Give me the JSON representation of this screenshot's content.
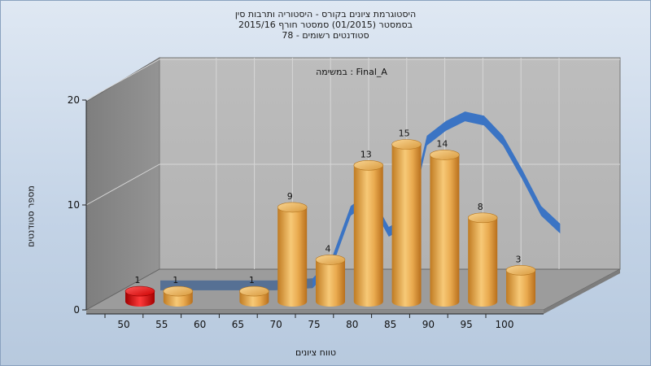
{
  "chart_data": {
    "type": "bar",
    "title_lines": [
      "היסטוגרמת ציונים בקורס - היסטוריה ותרבות סין",
      "בסמסטר  (01/2015)  סמסטר חורף 2015/16",
      "סטודנטים רשומים - 78"
    ],
    "annotation": "במשימה : Final_A",
    "ylabel": "מספר סטודנטים",
    "xlabel": "טווח ציונים",
    "ylim": [
      0,
      20
    ],
    "yticks": [
      0,
      10,
      20
    ],
    "xticks": [
      50,
      55,
      60,
      65,
      70,
      75,
      80,
      85,
      90,
      95,
      100
    ],
    "bars": [
      {
        "x": 50,
        "value": 1,
        "color": "red"
      },
      {
        "x": 55,
        "value": 1,
        "color": "gold"
      },
      {
        "x": 65,
        "value": 1,
        "color": "gold"
      },
      {
        "x": 70,
        "value": 9,
        "color": "gold"
      },
      {
        "x": 75,
        "value": 4,
        "color": "gold"
      },
      {
        "x": 80,
        "value": 13,
        "color": "gold"
      },
      {
        "x": 85,
        "value": 15,
        "color": "gold"
      },
      {
        "x": 90,
        "value": 14,
        "color": "gold"
      },
      {
        "x": 95,
        "value": 8,
        "color": "gold"
      },
      {
        "x": 100,
        "value": 3,
        "color": "gold"
      }
    ],
    "curve": {
      "type": "normal-distribution",
      "color": "#3b74c4",
      "x": [
        50,
        55,
        60,
        65,
        70,
        72.5,
        75,
        77.5,
        80,
        82.5,
        85,
        87.5,
        90,
        92.5,
        95,
        97.5,
        100,
        102.5
      ],
      "y": [
        0.4,
        0.4,
        0.4,
        0.4,
        0.6,
        2.5,
        7.5,
        8.8,
        5.5,
        6.5,
        14.2,
        15.6,
        16.5,
        16.1,
        14.2,
        11.0,
        7.5,
        5.8
      ]
    },
    "grid": true,
    "legend": "none"
  }
}
